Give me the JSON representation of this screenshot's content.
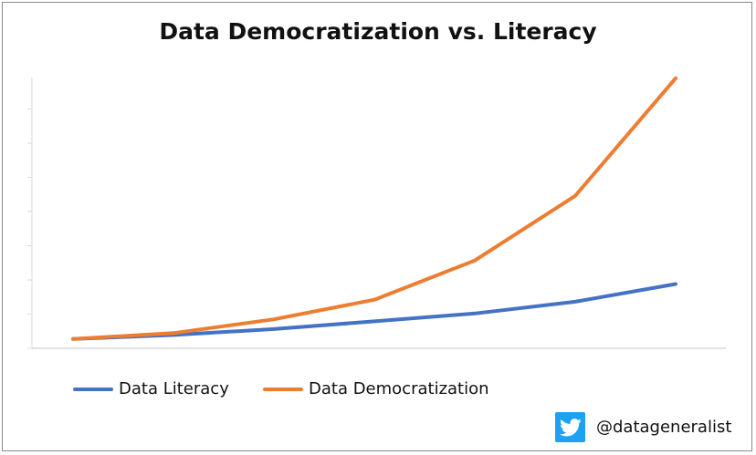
{
  "chart_data": {
    "type": "line",
    "title": "Data Democratization vs. Literacy",
    "xlabel": "",
    "ylabel": "",
    "x": [
      1,
      2,
      3,
      4,
      5,
      6,
      7
    ],
    "ylim": [
      0,
      7
    ],
    "grid": false,
    "legend_position": "bottom-left",
    "series": [
      {
        "name": "Data Literacy",
        "color": "#4472c4",
        "values": [
          0.1,
          0.2,
          0.35,
          0.55,
          0.75,
          1.05,
          1.5
        ]
      },
      {
        "name": "Data Democratization",
        "color": "#ed7d31",
        "values": [
          0.1,
          0.25,
          0.6,
          1.1,
          2.1,
          3.75,
          6.75
        ]
      }
    ]
  },
  "footer": {
    "twitter_icon": "twitter-bird-icon",
    "handle": "@datageneralist"
  }
}
